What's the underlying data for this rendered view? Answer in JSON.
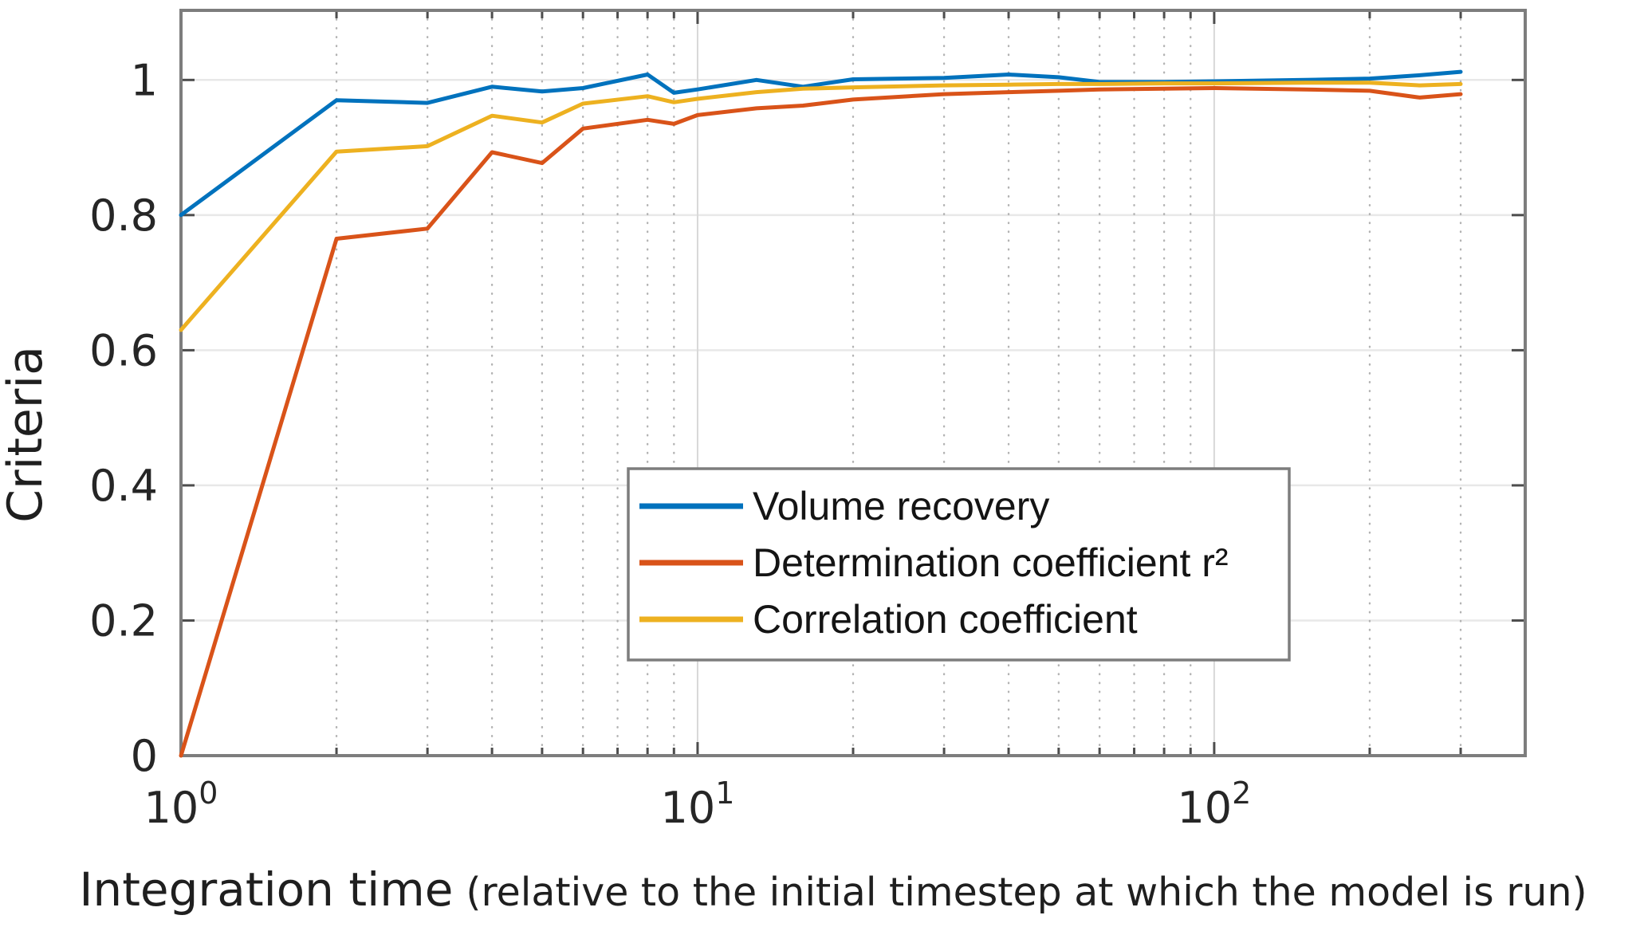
{
  "chart_data": {
    "type": "line",
    "x_scale": "log",
    "grid": true,
    "legend_position": "center",
    "ylabel": "Criteria",
    "xlabel_main": "Integration time",
    "xlabel_paren": "(relative to the initial timestep at which the model is run)",
    "xlim": [
      1,
      400
    ],
    "ylim": [
      0,
      1.103
    ],
    "y_ticks": [
      {
        "label": "0",
        "value": 0
      },
      {
        "label": "0.2",
        "value": 0.2
      },
      {
        "label": "0.4",
        "value": 0.4
      },
      {
        "label": "0.6",
        "value": 0.6
      },
      {
        "label": "0.8",
        "value": 0.8
      },
      {
        "label": "1",
        "value": 1
      }
    ],
    "x_ticks": [
      {
        "base": "10",
        "exp": "0",
        "value": 1
      },
      {
        "base": "10",
        "exp": "1",
        "value": 10
      },
      {
        "base": "10",
        "exp": "2",
        "value": 100
      }
    ],
    "h_gridlines": [
      0.2,
      0.4,
      0.6,
      0.8,
      1.0
    ],
    "x_major_gridlines": [
      10,
      100
    ],
    "x_minor_gridlines": [
      2,
      3,
      4,
      5,
      6,
      7,
      8,
      9,
      20,
      30,
      40,
      50,
      60,
      70,
      80,
      90,
      200,
      300
    ],
    "x": [
      1,
      2,
      3,
      4,
      5,
      6,
      8,
      9,
      10,
      13,
      16,
      20,
      30,
      40,
      50,
      60,
      80,
      100,
      150,
      200,
      250,
      300
    ],
    "series": [
      {
        "name": "Volume recovery",
        "color": "#0072BD",
        "values": [
          0.8,
          0.97,
          0.966,
          0.99,
          0.983,
          0.988,
          1.008,
          0.981,
          0.986,
          1.0,
          0.99,
          1.001,
          1.003,
          1.008,
          1.004,
          0.997,
          0.997,
          0.998,
          1.0,
          1.002,
          1.007,
          1.012
        ]
      },
      {
        "name": "Determination coefficient r²",
        "color": "#D95319",
        "values": [
          0.0,
          0.765,
          0.78,
          0.893,
          0.877,
          0.928,
          0.941,
          0.935,
          0.948,
          0.958,
          0.962,
          0.971,
          0.979,
          0.982,
          0.984,
          0.986,
          0.987,
          0.988,
          0.986,
          0.984,
          0.974,
          0.979
        ]
      },
      {
        "name": "Correlation coefficient",
        "color": "#EDB120",
        "values": [
          0.63,
          0.894,
          0.902,
          0.947,
          0.937,
          0.965,
          0.976,
          0.967,
          0.972,
          0.982,
          0.987,
          0.989,
          0.992,
          0.993,
          0.994,
          0.994,
          0.995,
          0.995,
          0.996,
          0.996,
          0.992,
          0.994
        ]
      }
    ],
    "colors": {
      "frame": "#7d7d7d",
      "h_grid": "#e8e8e8",
      "v_major_grid": "#d8d8d8",
      "v_minor_grid": "#b3b3b3",
      "tick": "#4d4d4d",
      "tick_text": "#262626"
    }
  }
}
